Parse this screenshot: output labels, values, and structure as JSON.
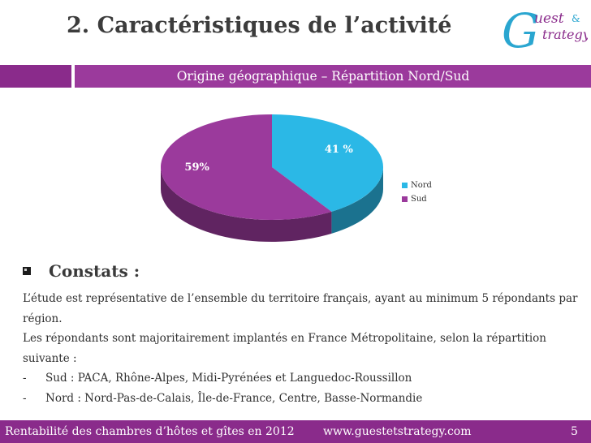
{
  "header": {
    "title": "2. Caractéristiques de l’activité",
    "subtitle": "Origine géographique – Répartition Nord/Sud",
    "logo": {
      "mark": "G",
      "word1": "uest",
      "amp": "&",
      "word2": "trategy"
    }
  },
  "chart_data": {
    "type": "pie",
    "title": "Origine géographique – Répartition Nord/Sud",
    "categories": [
      "Nord",
      "Sud"
    ],
    "values": [
      41,
      59
    ],
    "data_labels": [
      "41 %",
      "59%"
    ],
    "colors": [
      "#2bb8e6",
      "#9b3a9c"
    ],
    "legend_placement": "right"
  },
  "constats": {
    "heading": "Constats :",
    "para1_line1": "L’étude est représentative de l’ensemble du territoire français,  ayant au minimum 5 répondants par",
    "para1_line2": "région.",
    "para2_line1": "Les répondants sont majoritairement implantés en France Métropolitaine, selon la répartition",
    "para2_line2": "suivante :",
    "items": [
      {
        "dash": "-",
        "text": "Sud : PACA, Rhône-Alpes, Midi-Pyrénées et Languedoc-Roussillon"
      },
      {
        "dash": "-",
        "text": "Nord : Nord-Pas-de-Calais, Île-de-France, Centre, Basse-Normandie"
      }
    ]
  },
  "footer": {
    "left": "Rentabilité des chambres d’hôtes et gîtes en 2012",
    "center": "www.guestetstrategy.com",
    "page_number": "5"
  },
  "colors": {
    "accent": "#8a2b8b",
    "nord": "#2bb8e6",
    "sud": "#9b3a9c"
  }
}
